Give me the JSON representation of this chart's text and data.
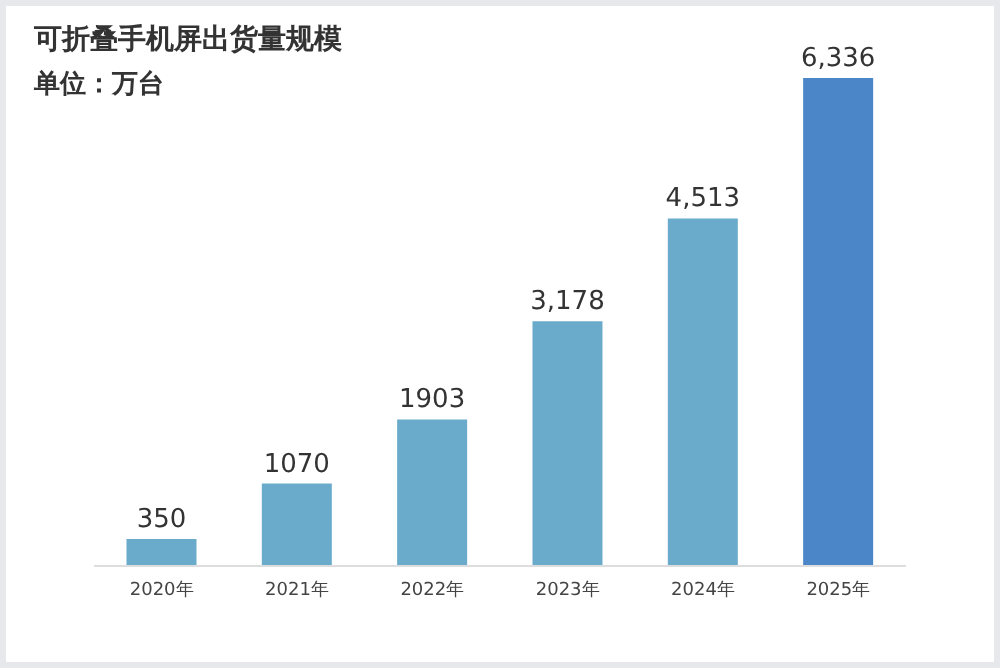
{
  "chart_data": {
    "type": "bar",
    "title": "可折叠手机屏出货量规模",
    "subtitle": "单位：万台",
    "categories": [
      "2020年",
      "2021年",
      "2022年",
      "2023年",
      "2024年",
      "2025年"
    ],
    "values": [
      350,
      1070,
      1903,
      3178,
      4513,
      6336
    ],
    "value_labels": [
      "350",
      "1070",
      "1903",
      "3,178",
      "4,513",
      "6,336"
    ],
    "colors": [
      "#6aabcb",
      "#6aabcb",
      "#6aabcb",
      "#6aabcb",
      "#6aabcb",
      "#4a86c8"
    ],
    "grid": false,
    "legend": false
  }
}
